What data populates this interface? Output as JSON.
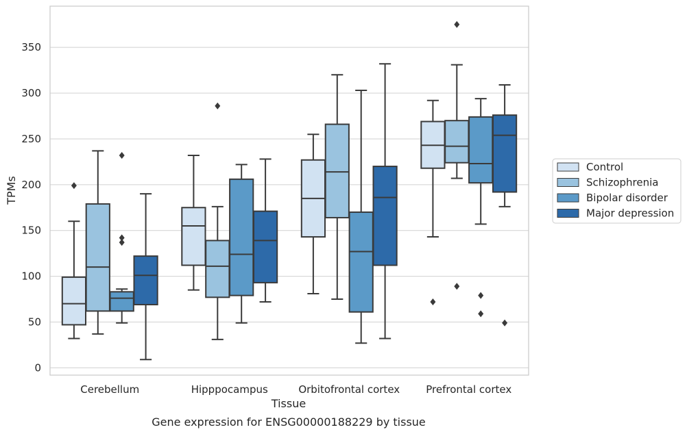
{
  "chart_data": {
    "type": "box",
    "xlabel": "Tissue",
    "ylabel": "TPMs",
    "caption": "Gene expression for ENSG00000188229 by tissue",
    "ylim": [
      -8,
      395
    ],
    "yticks": [
      0,
      50,
      100,
      150,
      200,
      250,
      300,
      350
    ],
    "grid": "horizontal",
    "legend_position": "right",
    "categories": [
      "Cerebellum",
      "Hipppocampus",
      "Orbitofrontal cortex",
      "Prefrontal cortex"
    ],
    "series": [
      {
        "name": "Control",
        "color": "#d1e2f2",
        "boxes": [
          {
            "whislo": 32,
            "q1": 47,
            "med": 70,
            "q3": 99,
            "whishi": 160,
            "fliers": [
              199
            ]
          },
          {
            "whislo": 85,
            "q1": 112,
            "med": 155,
            "q3": 175,
            "whishi": 232,
            "fliers": []
          },
          {
            "whislo": 81,
            "q1": 143,
            "med": 185,
            "q3": 227,
            "whishi": 255,
            "fliers": []
          },
          {
            "whislo": 143,
            "q1": 218,
            "med": 243,
            "q3": 269,
            "whishi": 292,
            "fliers": [
              72
            ]
          }
        ]
      },
      {
        "name": "Schizophrenia",
        "color": "#9ac3df",
        "boxes": [
          {
            "whislo": 37,
            "q1": 62,
            "med": 110,
            "q3": 179,
            "whishi": 237,
            "fliers": []
          },
          {
            "whislo": 31,
            "q1": 77,
            "med": 111,
            "q3": 139,
            "whishi": 176,
            "fliers": [
              286
            ]
          },
          {
            "whislo": 75,
            "q1": 164,
            "med": 214,
            "q3": 266,
            "whishi": 320,
            "fliers": []
          },
          {
            "whislo": 207,
            "q1": 224,
            "med": 242,
            "q3": 270,
            "whishi": 331,
            "fliers": [
              89,
              375
            ]
          }
        ]
      },
      {
        "name": "Bipolar disorder",
        "color": "#5b9ac8",
        "boxes": [
          {
            "whislo": 49,
            "q1": 62,
            "med": 76,
            "q3": 83,
            "whishi": 86,
            "fliers": [
              137,
              142,
              232
            ]
          },
          {
            "whislo": 49,
            "q1": 79,
            "med": 124,
            "q3": 206,
            "whishi": 222,
            "fliers": []
          },
          {
            "whislo": 27,
            "q1": 61,
            "med": 127,
            "q3": 170,
            "whishi": 303,
            "fliers": []
          },
          {
            "whislo": 157,
            "q1": 202,
            "med": 223,
            "q3": 274,
            "whishi": 294,
            "fliers": [
              59,
              79
            ]
          }
        ]
      },
      {
        "name": "Major depression",
        "color": "#2d6aa9",
        "boxes": [
          {
            "whislo": 9,
            "q1": 69,
            "med": 101,
            "q3": 122,
            "whishi": 190,
            "fliers": []
          },
          {
            "whislo": 72,
            "q1": 93,
            "med": 139,
            "q3": 171,
            "whishi": 228,
            "fliers": []
          },
          {
            "whislo": 32,
            "q1": 112,
            "med": 186,
            "q3": 220,
            "whishi": 332,
            "fliers": []
          },
          {
            "whislo": 176,
            "q1": 192,
            "med": 254,
            "q3": 276,
            "whishi": 309,
            "fliers": [
              49
            ]
          }
        ]
      }
    ]
  }
}
